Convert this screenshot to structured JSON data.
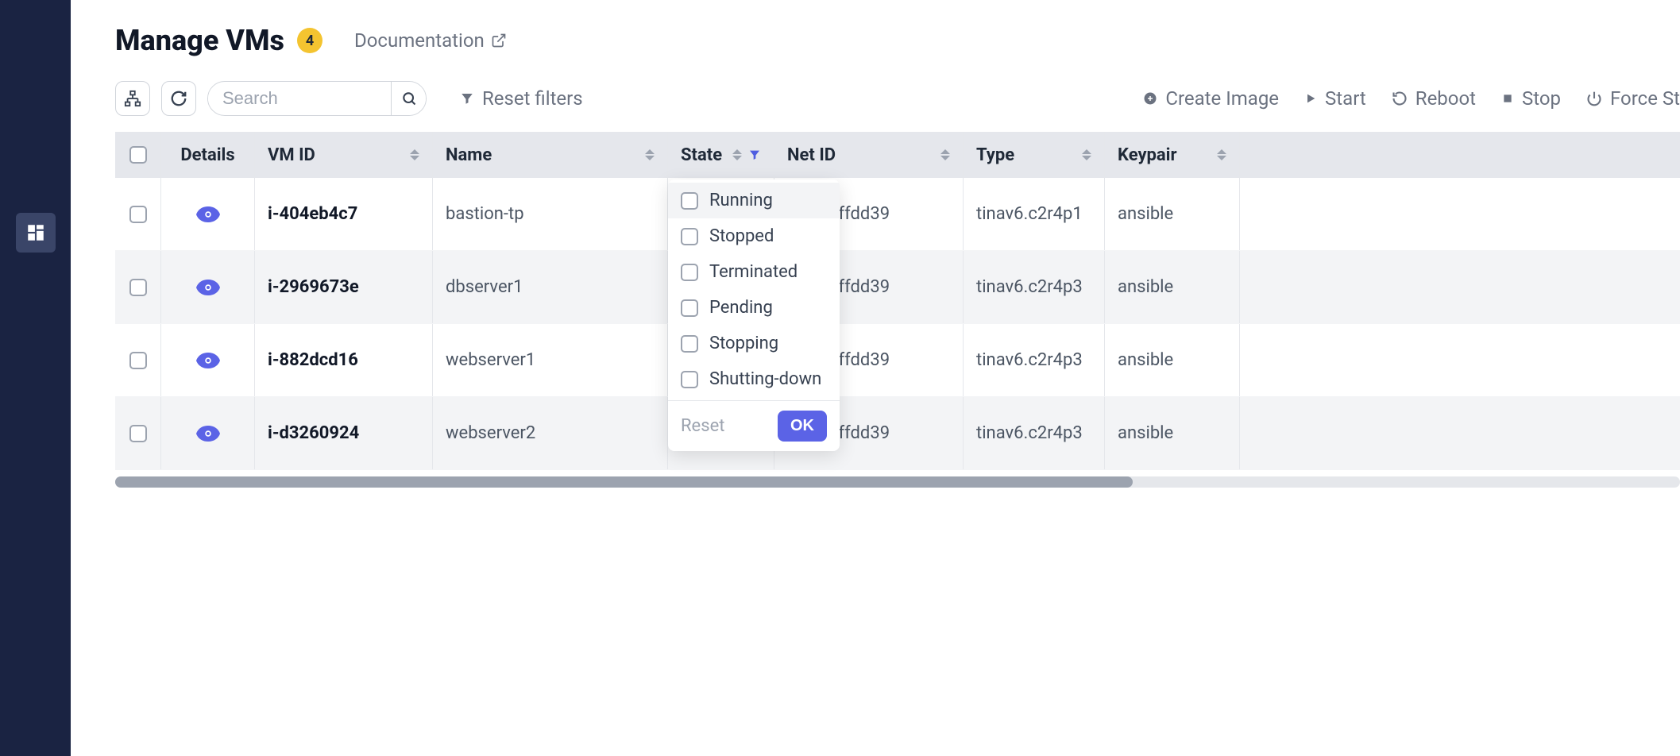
{
  "header": {
    "title": "Manage VMs",
    "count": "4",
    "doc_label": "Documentation"
  },
  "toolbar": {
    "search_placeholder": "Search",
    "reset_filters": "Reset filters",
    "create_image": "Create Image",
    "start": "Start",
    "reboot": "Reboot",
    "stop": "Stop",
    "force_stop": "Force St"
  },
  "columns": {
    "details": "Details",
    "vmid": "VM ID",
    "name": "Name",
    "state": "State",
    "netid": "Net ID",
    "type": "Type",
    "keypair": "Keypair"
  },
  "rows": [
    {
      "vmid": "i-404eb4c7",
      "name": "bastion-tp",
      "netid": "vpc-c8ffdd39",
      "type": "tinav6.c2r4p1",
      "keypair": "ansible"
    },
    {
      "vmid": "i-2969673e",
      "name": "dbserver1",
      "netid": "vpc-c8ffdd39",
      "type": "tinav6.c2r4p3",
      "keypair": "ansible"
    },
    {
      "vmid": "i-882dcd16",
      "name": "webserver1",
      "netid": "vpc-c8ffdd39",
      "type": "tinav6.c2r4p3",
      "keypair": "ansible"
    },
    {
      "vmid": "i-d3260924",
      "name": "webserver2",
      "netid": "vpc-c8ffdd39",
      "type": "tinav6.c2r4p3",
      "keypair": "ansible"
    }
  ],
  "filter": {
    "opts": [
      "Running",
      "Stopped",
      "Terminated",
      "Pending",
      "Stopping",
      "Shutting-down"
    ],
    "reset": "Reset",
    "ok": "OK"
  },
  "colors": {
    "sidebar_bg": "#1a2342",
    "badge_bg": "#f4c430",
    "accent": "#5b63e6",
    "header_row_bg": "#e5e7ec",
    "row_alt_bg": "#f3f4f6",
    "text_muted": "#6b7280",
    "text_strong": "#111827"
  }
}
